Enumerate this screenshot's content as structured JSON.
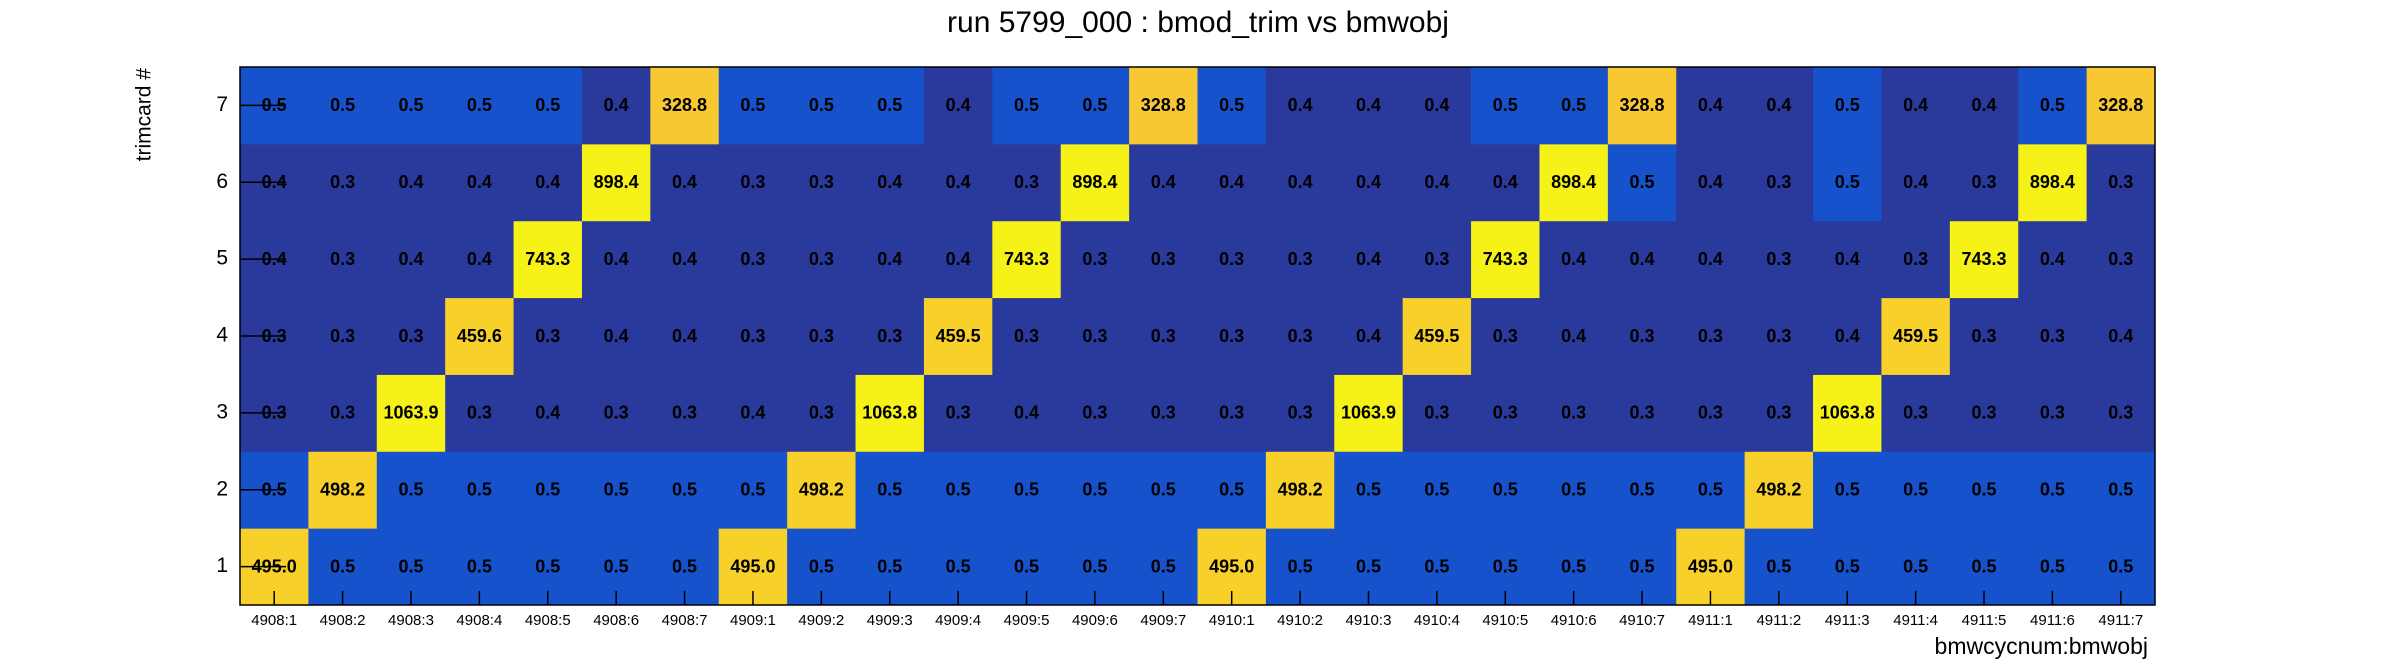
{
  "chart_data": {
    "type": "heatmap",
    "title": "run 5799_000 : bmod_trim vs bmwobj",
    "x_label": "bmwcycnum:bmwobj",
    "y_label": "trimcard #",
    "x": [
      "4908:1",
      "4908:2",
      "4908:3",
      "4908:4",
      "4908:5",
      "4908:6",
      "4908:7",
      "4909:1",
      "4909:2",
      "4909:3",
      "4909:4",
      "4909:5",
      "4909:6",
      "4909:7",
      "4910:1",
      "4910:2",
      "4910:3",
      "4910:4",
      "4910:5",
      "4910:6",
      "4910:7",
      "4911:1",
      "4911:2",
      "4911:3",
      "4911:4",
      "4911:5",
      "4911:6",
      "4911:7"
    ],
    "y": [
      1,
      2,
      3,
      4,
      5,
      6,
      7
    ],
    "values": [
      [
        495.0,
        0.5,
        0.5,
        0.5,
        0.5,
        0.5,
        0.5,
        495.0,
        0.5,
        0.5,
        0.5,
        0.5,
        0.5,
        0.5,
        495.0,
        0.5,
        0.5,
        0.5,
        0.5,
        0.5,
        0.5,
        495.0,
        0.5,
        0.5,
        0.5,
        0.5,
        0.5,
        0.5
      ],
      [
        0.5,
        498.2,
        0.5,
        0.5,
        0.5,
        0.5,
        0.5,
        0.5,
        498.2,
        0.5,
        0.5,
        0.5,
        0.5,
        0.5,
        0.5,
        498.2,
        0.5,
        0.5,
        0.5,
        0.5,
        0.5,
        0.5,
        498.2,
        0.5,
        0.5,
        0.5,
        0.5,
        0.5
      ],
      [
        0.3,
        0.3,
        1063.9,
        0.3,
        0.4,
        0.3,
        0.3,
        0.4,
        0.3,
        1063.8,
        0.3,
        0.4,
        0.3,
        0.3,
        0.3,
        0.3,
        1063.9,
        0.3,
        0.3,
        0.3,
        0.3,
        0.3,
        0.3,
        1063.8,
        0.3,
        0.3,
        0.3,
        0.3
      ],
      [
        0.3,
        0.3,
        0.3,
        459.6,
        0.3,
        0.4,
        0.4,
        0.3,
        0.3,
        0.3,
        459.5,
        0.3,
        0.3,
        0.3,
        0.3,
        0.3,
        0.4,
        459.5,
        0.3,
        0.4,
        0.3,
        0.3,
        0.3,
        0.4,
        459.5,
        0.3,
        0.3,
        0.4
      ],
      [
        0.4,
        0.3,
        0.4,
        0.4,
        743.3,
        0.4,
        0.4,
        0.3,
        0.3,
        0.4,
        0.4,
        743.3,
        0.3,
        0.3,
        0.3,
        0.3,
        0.4,
        0.3,
        743.3,
        0.4,
        0.4,
        0.4,
        0.3,
        0.4,
        0.3,
        743.3,
        0.4,
        0.3
      ],
      [
        0.4,
        0.3,
        0.4,
        0.4,
        0.4,
        898.4,
        0.4,
        0.3,
        0.3,
        0.4,
        0.4,
        0.3,
        898.4,
        0.4,
        0.4,
        0.4,
        0.4,
        0.4,
        0.4,
        898.4,
        0.5,
        0.4,
        0.3,
        0.5,
        0.4,
        0.3,
        898.4,
        0.3
      ],
      [
        0.5,
        0.5,
        0.5,
        0.5,
        0.5,
        0.4,
        328.8,
        0.5,
        0.5,
        0.5,
        0.4,
        0.5,
        0.5,
        328.8,
        0.5,
        0.4,
        0.4,
        0.4,
        0.5,
        0.5,
        328.8,
        0.4,
        0.4,
        0.5,
        0.4,
        0.4,
        0.5,
        328.8
      ]
    ],
    "value_labels": [
      [
        "495.0",
        "0.5",
        "0.5",
        "0.5",
        "0.5",
        "0.5",
        "0.5",
        "495.0",
        "0.5",
        "0.5",
        "0.5",
        "0.5",
        "0.5",
        "0.5",
        "495.0",
        "0.5",
        "0.5",
        "0.5",
        "0.5",
        "0.5",
        "0.5",
        "495.0",
        "0.5",
        "0.5",
        "0.5",
        "0.5",
        "0.5",
        "0.5"
      ],
      [
        "0.5",
        "498.2",
        "0.5",
        "0.5",
        "0.5",
        "0.5",
        "0.5",
        "0.5",
        "498.2",
        "0.5",
        "0.5",
        "0.5",
        "0.5",
        "0.5",
        "0.5",
        "498.2",
        "0.5",
        "0.5",
        "0.5",
        "0.5",
        "0.5",
        "0.5",
        "498.2",
        "0.5",
        "0.5",
        "0.5",
        "0.5",
        "0.5"
      ],
      [
        "0.3",
        "0.3",
        "1063.9",
        "0.3",
        "0.4",
        "0.3",
        "0.3",
        "0.4",
        "0.3",
        "1063.8",
        "0.3",
        "0.4",
        "0.3",
        "0.3",
        "0.3",
        "0.3",
        "1063.9",
        "0.3",
        "0.3",
        "0.3",
        "0.3",
        "0.3",
        "0.3",
        "1063.8",
        "0.3",
        "0.3",
        "0.3",
        "0.3"
      ],
      [
        "0.3",
        "0.3",
        "0.3",
        "459.6",
        "0.3",
        "0.4",
        "0.4",
        "0.3",
        "0.3",
        "0.3",
        "459.5",
        "0.3",
        "0.3",
        "0.3",
        "0.3",
        "0.3",
        "0.4",
        "459.5",
        "0.3",
        "0.4",
        "0.3",
        "0.3",
        "0.3",
        "0.4",
        "459.5",
        "0.3",
        "0.3",
        "0.4"
      ],
      [
        "0.4",
        "0.3",
        "0.4",
        "0.4",
        "743.3",
        "0.4",
        "0.4",
        "0.3",
        "0.3",
        "0.4",
        "0.4",
        "743.3",
        "0.3",
        "0.3",
        "0.3",
        "0.3",
        "0.4",
        "0.3",
        "743.3",
        "0.4",
        "0.4",
        "0.4",
        "0.3",
        "0.4",
        "0.3",
        "743.3",
        "0.4",
        "0.3"
      ],
      [
        "0.4",
        "0.3",
        "0.4",
        "0.4",
        "0.4",
        "898.4",
        "0.4",
        "0.3",
        "0.3",
        "0.4",
        "0.4",
        "0.3",
        "898.4",
        "0.4",
        "0.4",
        "0.4",
        "0.4",
        "0.4",
        "0.4",
        "898.4",
        "0.5",
        "0.4",
        "0.3",
        "0.5",
        "0.4",
        "0.3",
        "898.4",
        "0.3"
      ],
      [
        "0.5",
        "0.5",
        "0.5",
        "0.5",
        "0.5",
        "0.4",
        "328.8",
        "0.5",
        "0.5",
        "0.5",
        "0.4",
        "0.5",
        "0.5",
        "328.8",
        "0.5",
        "0.4",
        "0.4",
        "0.4",
        "0.5",
        "0.5",
        "328.8",
        "0.4",
        "0.4",
        "0.5",
        "0.4",
        "0.4",
        "0.5",
        "328.8"
      ]
    ],
    "zscale": "log",
    "palette": [
      "#2a3a9c",
      "#1652cb",
      "#1652cb",
      "#1652cb",
      "#1652cb",
      "#1652cb",
      "#1652cb",
      "#1652cb",
      "#1652cb",
      "#1652cb",
      "#1652cb",
      "#1652cb",
      "#1652cb",
      "#1652cb",
      "#1652cb",
      "#1652cb",
      "#1652cb",
      "#1652cb",
      "#1652cb",
      "#1652cb",
      "#f7c832",
      "#f7d02a",
      "#f6f218",
      "#f6f218"
    ]
  }
}
